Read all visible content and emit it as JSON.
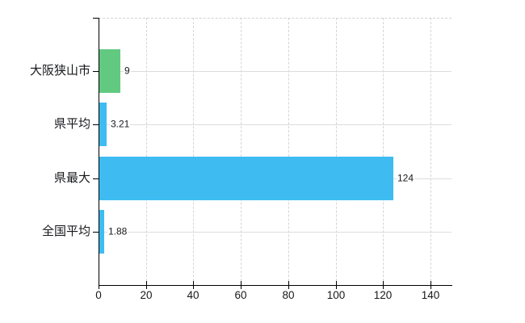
{
  "chart_data": {
    "type": "bar",
    "orientation": "horizontal",
    "title": "",
    "xlabel": "",
    "ylabel": "",
    "categories": [
      "大阪狭山市",
      "県平均",
      "県最大",
      "全国平均"
    ],
    "values": [
      9,
      3.21,
      124,
      1.88
    ],
    "value_labels": [
      "9",
      "3.21",
      "124",
      "1.88"
    ],
    "bar_colors": [
      "#62c981",
      "#3ebcf2",
      "#3ebcf2",
      "#3ebcf2"
    ],
    "x_ticks": [
      0,
      20,
      40,
      60,
      80,
      100,
      120,
      140
    ],
    "xlim": [
      0,
      148.8
    ],
    "grid": true,
    "legend": false,
    "gridline_style": {
      "vertical": "dashed",
      "horizontal": "solid"
    }
  },
  "colors": {
    "background": "#ffffff",
    "bar_green": "#62c981",
    "bar_blue": "#3ebcf2",
    "axis": "#000000",
    "gridline": "#d8d8d8",
    "text": "#17181c"
  }
}
